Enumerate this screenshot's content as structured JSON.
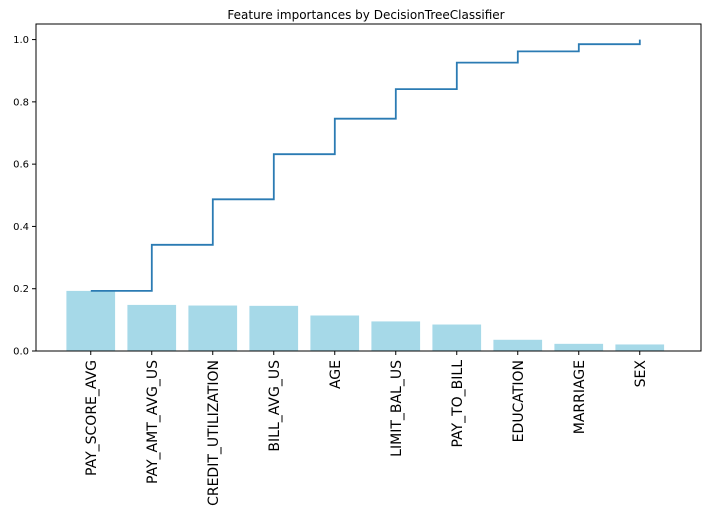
{
  "chart_data": {
    "type": "bar",
    "title": "Feature importances by DecisionTreeClassifier",
    "xlabel": "",
    "ylabel": "",
    "categories": [
      "PAY_SCORE_AVG",
      "PAY_AMT_AVG_US",
      "CREDIT_UTILIZATION",
      "BILL_AVG_US",
      "AGE",
      "LIMIT_BAL_US",
      "PAY_TO_BILL",
      "EDUCATION",
      "MARRIAGE",
      "SEX"
    ],
    "series": [
      {
        "type": "bar",
        "values": [
          0.193,
          0.148,
          0.146,
          0.145,
          0.114,
          0.095,
          0.085,
          0.036,
          0.023,
          0.021
        ]
      },
      {
        "type": "step",
        "values": [
          0.193,
          0.341,
          0.487,
          0.632,
          0.746,
          0.841,
          0.926,
          0.962,
          0.985,
          1.0
        ]
      }
    ],
    "ylim": [
      0.0,
      1.05
    ],
    "yticks": [
      0.0,
      0.2,
      0.4,
      0.6,
      0.8,
      1.0
    ],
    "ytick_labels": [
      "0.0",
      "0.2",
      "0.4",
      "0.6",
      "0.8",
      "1.0"
    ],
    "grid": false,
    "colors": {
      "bar": "#a6d9e8",
      "step": "#2b7bb3",
      "axis": "#000000"
    }
  }
}
